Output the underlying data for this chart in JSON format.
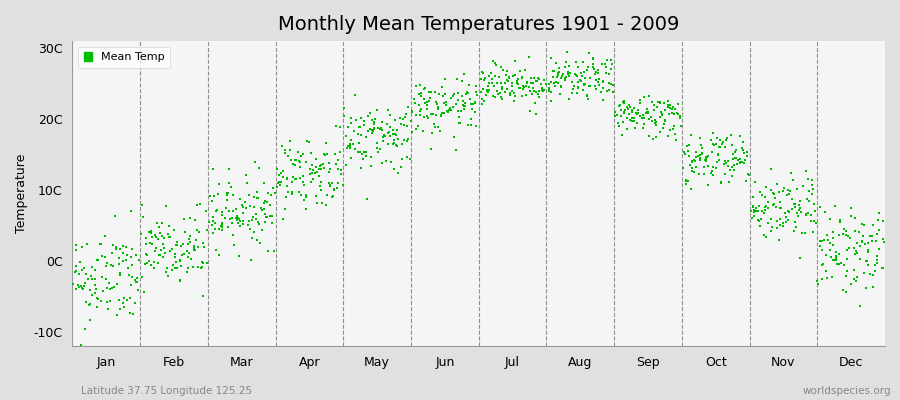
{
  "title": "Monthly Mean Temperatures 1901 - 2009",
  "ylabel": "Temperature",
  "subtitle": "Latitude 37.75 Longitude 125.25",
  "watermark": "worldspecies.org",
  "legend_label": "Mean Temp",
  "dot_color": "#00BB00",
  "background_color": "#E0E0E0",
  "plot_background": "#F5F5F5",
  "yticks": [
    -10,
    0,
    10,
    20,
    30
  ],
  "ytick_labels": [
    "-10C",
    "0C",
    "10C",
    "20C",
    "30C"
  ],
  "ylim": [
    -12,
    31
  ],
  "months": [
    "Jan",
    "Feb",
    "Mar",
    "Apr",
    "May",
    "Jun",
    "Jul",
    "Aug",
    "Sep",
    "Oct",
    "Nov",
    "Dec"
  ],
  "mean_temps": [
    -2.5,
    1.5,
    7.0,
    12.5,
    17.5,
    21.5,
    25.0,
    25.5,
    20.5,
    14.5,
    7.5,
    1.5
  ],
  "temp_spreads": [
    3.5,
    3.0,
    2.5,
    2.5,
    2.5,
    2.0,
    1.5,
    1.5,
    1.5,
    2.0,
    2.5,
    3.0
  ],
  "n_years": 109,
  "random_seed": 42,
  "marker_size": 2,
  "title_fontsize": 14,
  "axis_fontsize": 9,
  "tick_fontsize": 9
}
